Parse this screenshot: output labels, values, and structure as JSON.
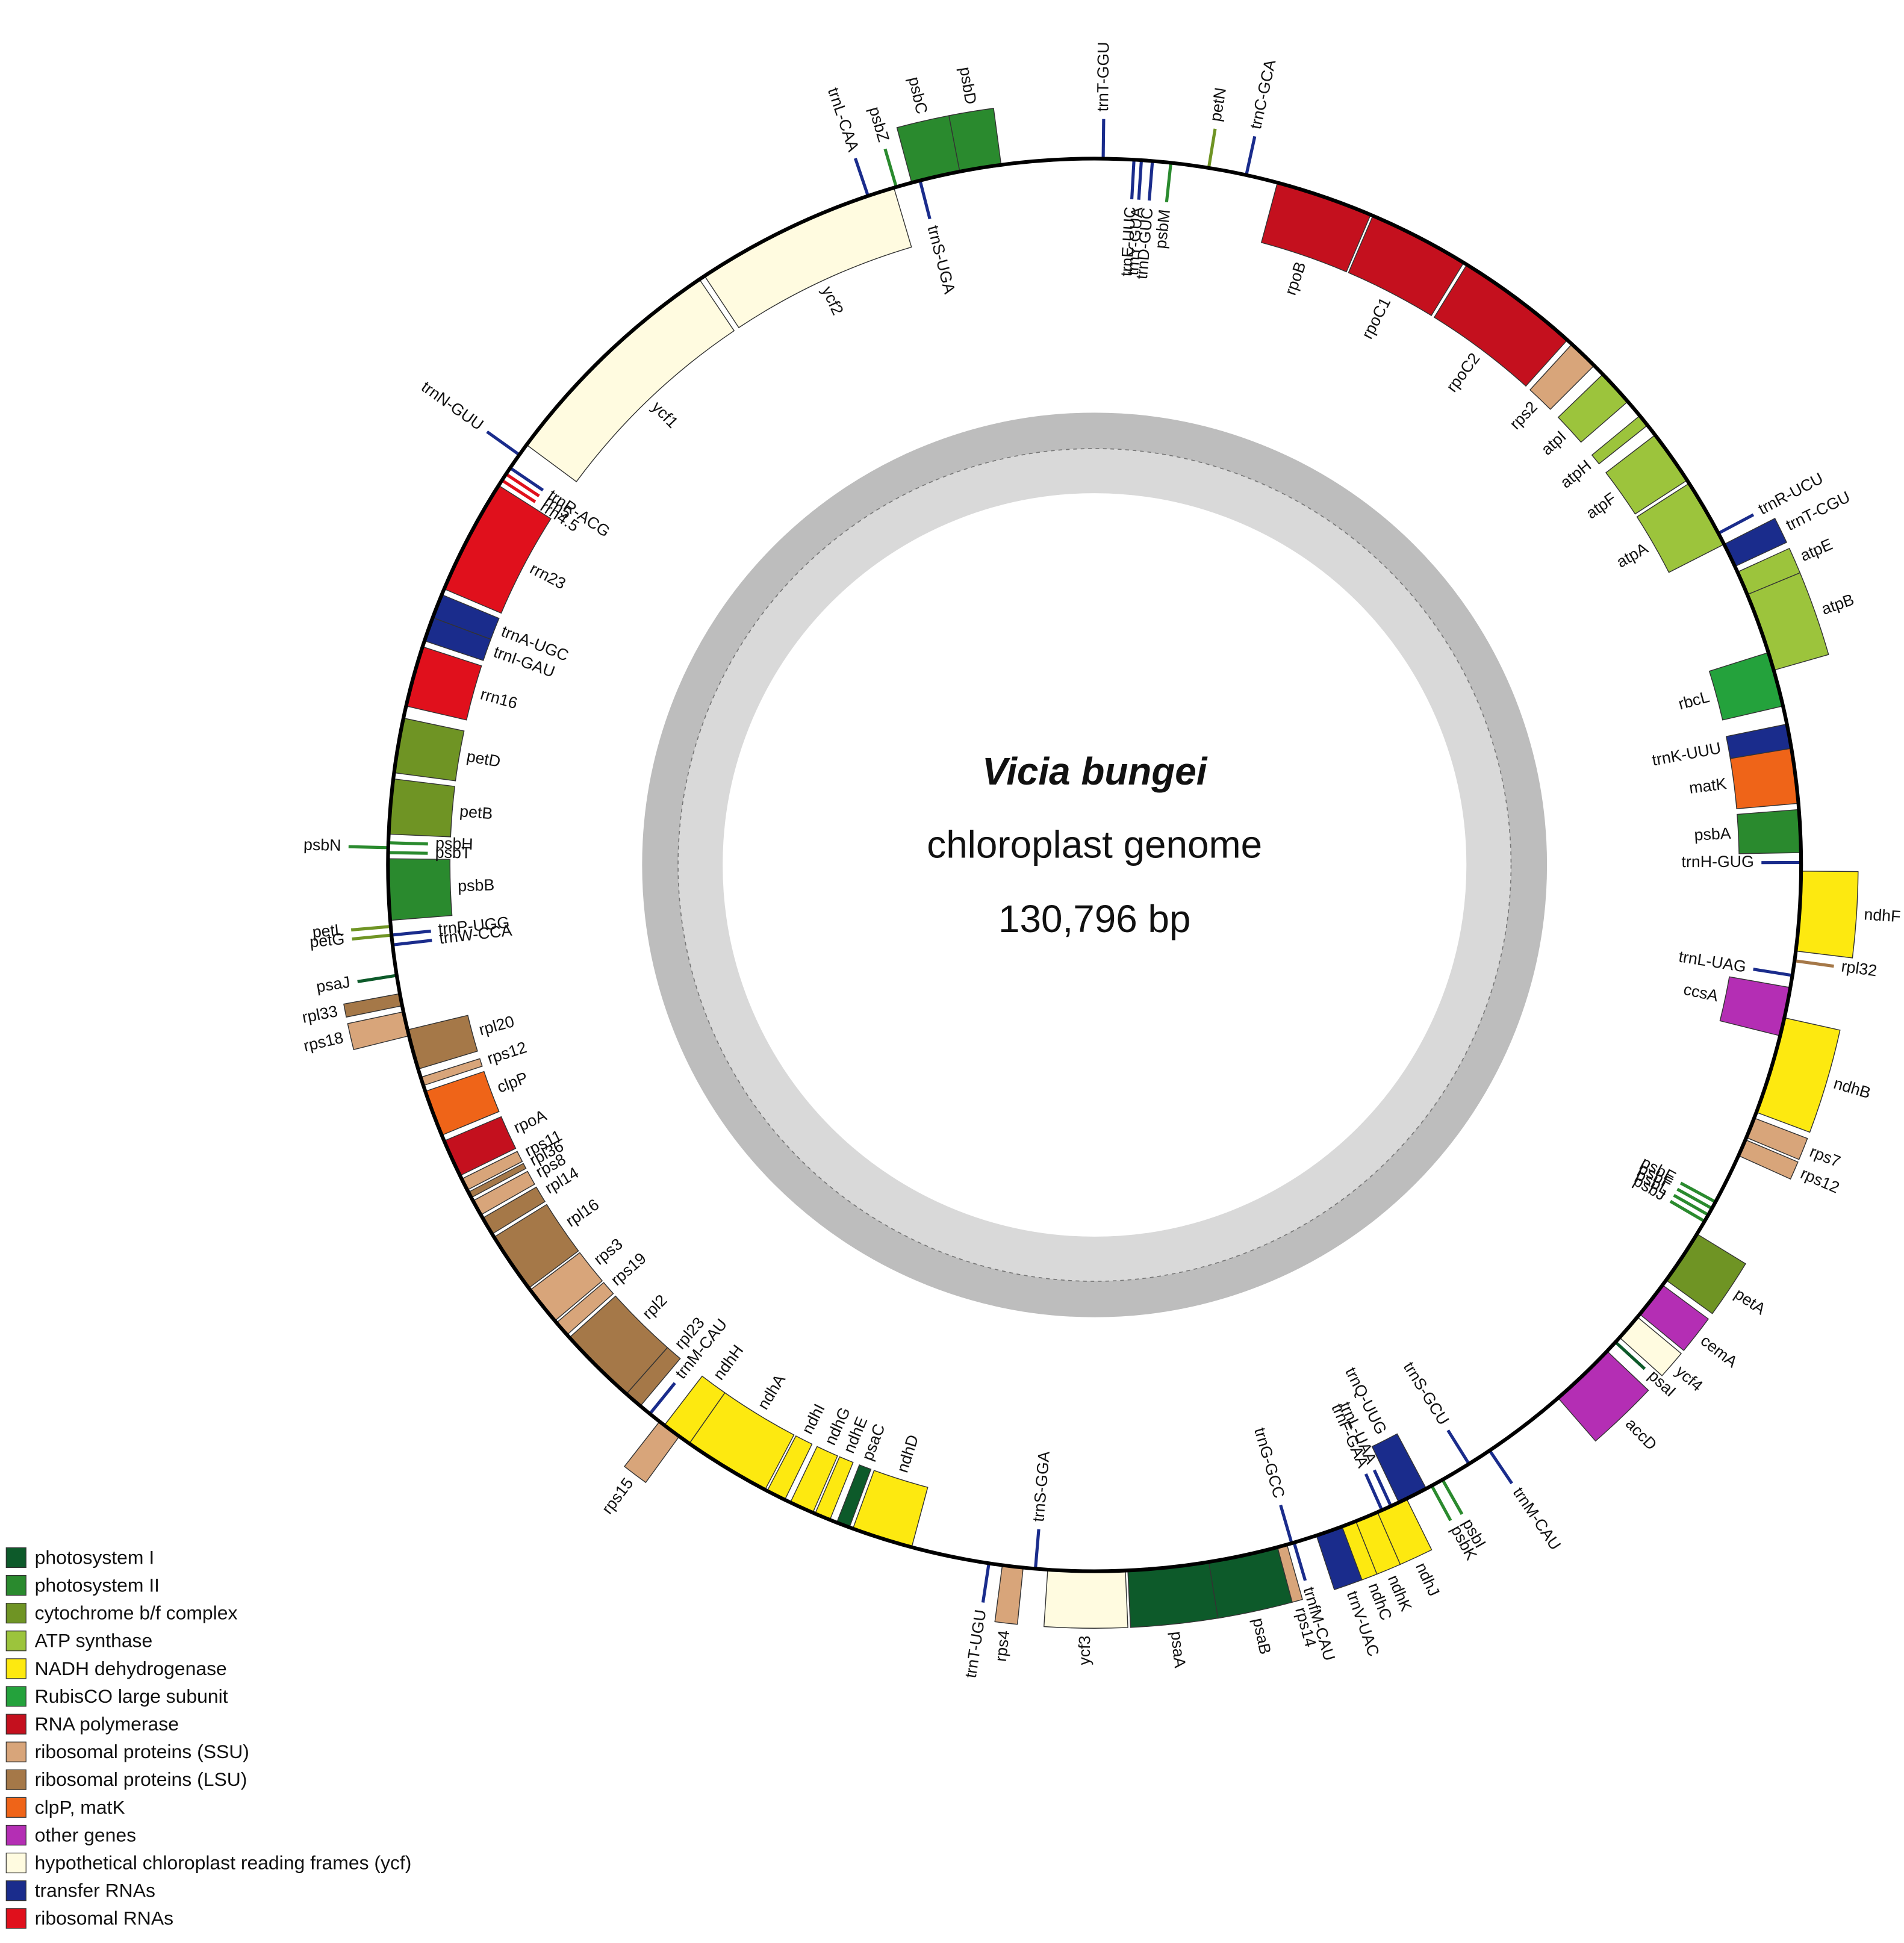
{
  "title": "Vicia bungei",
  "subtitle": "chloroplast genome",
  "size_label": "130,796 bp",
  "genes": [
    "psbD",
    "psbC",
    "psbZ",
    "trnL-CAA",
    "trnS-UGA",
    "trnT-GGU",
    "trnE-UUC",
    "trnY-GUA",
    "trnD-GUC",
    "psbM",
    "petN",
    "trnC-GCA",
    "rpoB",
    "rpoC1",
    "rpoC2",
    "rps2",
    "atpI",
    "atpH",
    "atpF",
    "atpA",
    "trnR-UCU",
    "trnT-CGU",
    "atpE",
    "atpB",
    "rbcL",
    "trnK-UUU",
    "matK",
    "psbA",
    "trnH-GUG",
    "ndhF",
    "rpl32",
    "trnL-UAG",
    "ccsA",
    "ndhB",
    "rps7",
    "rps12",
    "psbE",
    "psbF",
    "psbL",
    "psbJ",
    "petA",
    "cemA",
    "ycf4",
    "psaI",
    "accD",
    "trnM-CAU",
    "trnS-GCU",
    "psbI",
    "psbK",
    "trnQ-UUG",
    "trnL-UAA",
    "trnF-GAA",
    "ndhJ",
    "ndhK",
    "ndhC",
    "trnV-UAC",
    "trnG-GCC",
    "trnfM-CAU",
    "rps14",
    "psaB",
    "psaA",
    "ycf3",
    "trnS-GGA",
    "rps4",
    "trnT-UGU",
    "ndhD",
    "psaC",
    "ndhE",
    "ndhG",
    "ndhI",
    "ndhA",
    "ndhH",
    "rps15",
    "trnM-CAU",
    "rpl23",
    "rpl2",
    "rps19",
    "rps3",
    "rpl16",
    "rpl14",
    "rps8",
    "rpl36",
    "rps11",
    "rpoA",
    "clpP",
    "rps12",
    "rpl20",
    "rps18",
    "rpl33",
    "psaJ",
    "petG",
    "petL",
    "trnW-CCA",
    "trnP-UGG",
    "psbB",
    "psbT",
    "psbH",
    "psbN",
    "petB",
    "petD",
    "rrn16",
    "trnI-GAU",
    "trnA-UGC",
    "rrn23",
    "rrn4.5",
    "rrn5",
    "trnR-ACG",
    "trnN-GUU",
    "ycf1",
    "ycf2"
  ],
  "legend": [
    {
      "label": "photosystem I",
      "color": "#0d5a2a"
    },
    {
      "label": "photosystem II",
      "color": "#2a8a2e"
    },
    {
      "label": "cytochrome b/f complex",
      "color": "#6f9424"
    },
    {
      "label": "ATP synthase",
      "color": "#9cc43c"
    },
    {
      "label": "NADH dehydrogenase",
      "color": "#fde910"
    },
    {
      "label": "RubisCO large subunit",
      "color": "#24a23c"
    },
    {
      "label": "RNA polymerase",
      "color": "#c4101e"
    },
    {
      "label": "ribosomal proteins (SSU)",
      "color": "#d8a57a"
    },
    {
      "label": "ribosomal proteins (LSU)",
      "color": "#a57848"
    },
    {
      "label": "clpP, matK",
      "color": "#ef6418"
    },
    {
      "label": "other genes",
      "color": "#b42eb4"
    },
    {
      "label": "hypothetical chloroplast reading frames (ycf)",
      "color": "#fffbe0"
    },
    {
      "label": "transfer RNAs",
      "color": "#1a2c8c"
    },
    {
      "label": "ribosomal RNAs",
      "color": "#e0101c"
    }
  ]
}
